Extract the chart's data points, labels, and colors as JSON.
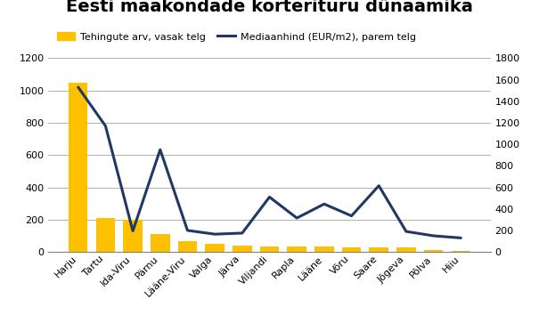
{
  "title": "Eesti maakondade korterituru dünaamika",
  "categories": [
    "Harju",
    "Tartu",
    "Ida-Viru",
    "Pärnu",
    "Lääne-Viru",
    "Valga",
    "Järva",
    "Viljandi",
    "Rapla",
    "Lääne",
    "Võru",
    "Saare",
    "Jõgeva",
    "Põlva",
    "Hiiu"
  ],
  "bar_values": [
    1050,
    210,
    200,
    110,
    65,
    50,
    40,
    35,
    35,
    33,
    30,
    27,
    27,
    12,
    4
  ],
  "line_values": [
    1530,
    1170,
    195,
    950,
    200,
    165,
    175,
    510,
    315,
    445,
    335,
    615,
    190,
    150,
    130
  ],
  "bar_color": "#FFC000",
  "line_color": "#1F3864",
  "bar_label": "Tehingute arv, vasak telg",
  "line_label": "Mediaanhind (EUR/m2), parem telg",
  "ylim_left": [
    0,
    1200
  ],
  "ylim_right": [
    0,
    1800
  ],
  "yticks_left": [
    0,
    200,
    400,
    600,
    800,
    1000,
    1200
  ],
  "yticks_right": [
    0,
    200,
    400,
    600,
    800,
    1000,
    1200,
    1400,
    1600,
    1800
  ],
  "background_color": "#ffffff",
  "grid_color": "#b0b0b0",
  "title_fontsize": 14,
  "legend_fontsize": 8,
  "tick_fontsize": 8
}
